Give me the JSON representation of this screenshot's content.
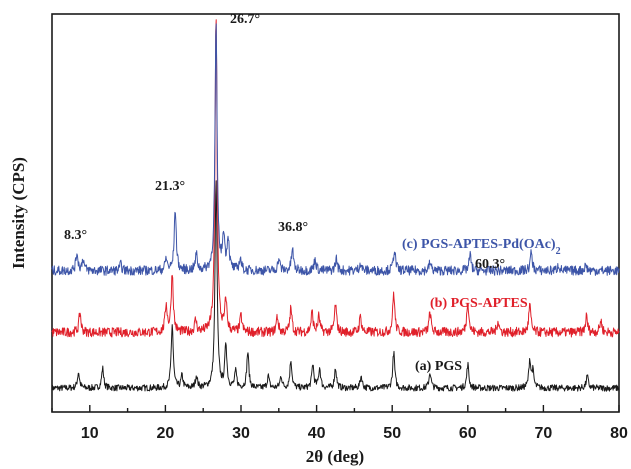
{
  "chart_data": {
    "type": "line",
    "xlabel": "2θ (deg)",
    "ylabel": "Intensity (CPS)",
    "xlim": [
      5,
      80
    ],
    "xticks": [
      10,
      20,
      30,
      40,
      50,
      60,
      70,
      80
    ],
    "y_tick_labels_shown": false,
    "grid": false,
    "legend": "inline labels beside each trace",
    "series": [
      {
        "name": "(a) PGS",
        "color": "#1a1a1a",
        "baseline": 0.06,
        "noise": 0.008,
        "peaks": [
          [
            8.5,
            0.04
          ],
          [
            11.7,
            0.05
          ],
          [
            20.9,
            0.16
          ],
          [
            22.2,
            0.03
          ],
          [
            24.1,
            0.03
          ],
          [
            26.7,
            0.52
          ],
          [
            28.0,
            0.11
          ],
          [
            29.3,
            0.04
          ],
          [
            30.9,
            0.09
          ],
          [
            33.6,
            0.03
          ],
          [
            35.3,
            0.03
          ],
          [
            36.6,
            0.07
          ],
          [
            39.5,
            0.06
          ],
          [
            40.4,
            0.05
          ],
          [
            42.5,
            0.05
          ],
          [
            45.9,
            0.03
          ],
          [
            50.2,
            0.09
          ],
          [
            55.0,
            0.04
          ],
          [
            60.0,
            0.06
          ],
          [
            68.2,
            0.07
          ],
          [
            68.6,
            0.04
          ],
          [
            75.8,
            0.03
          ]
        ]
      },
      {
        "name": "(b) PGS-APTES",
        "color": "#e0202a",
        "baseline": 0.2,
        "noise": 0.012,
        "peaks": [
          [
            8.7,
            0.05
          ],
          [
            20.1,
            0.07
          ],
          [
            20.9,
            0.15
          ],
          [
            24.0,
            0.03
          ],
          [
            26.7,
            0.8
          ],
          [
            28.0,
            0.08
          ],
          [
            30.0,
            0.04
          ],
          [
            34.8,
            0.04
          ],
          [
            36.6,
            0.06
          ],
          [
            39.4,
            0.05
          ],
          [
            40.3,
            0.04
          ],
          [
            42.5,
            0.07
          ],
          [
            45.8,
            0.04
          ],
          [
            50.2,
            0.1
          ],
          [
            55.0,
            0.05
          ],
          [
            60.0,
            0.08
          ],
          [
            64.0,
            0.03
          ],
          [
            68.2,
            0.07
          ],
          [
            75.7,
            0.04
          ],
          [
            77.6,
            0.03
          ]
        ]
      },
      {
        "name": "(c) PGS-APTES-Pd(OAc)2",
        "color": "#3d55a8",
        "baseline": 0.355,
        "noise": 0.012,
        "peaks": [
          [
            8.3,
            0.045
          ],
          [
            9.1,
            0.03
          ],
          [
            14.1,
            0.015
          ],
          [
            20.1,
            0.03
          ],
          [
            21.3,
            0.155
          ],
          [
            24.1,
            0.04
          ],
          [
            26.7,
            0.62
          ],
          [
            27.7,
            0.09
          ],
          [
            28.3,
            0.08
          ],
          [
            29.9,
            0.03
          ],
          [
            35.0,
            0.03
          ],
          [
            36.8,
            0.055
          ],
          [
            39.8,
            0.03
          ],
          [
            42.6,
            0.03
          ],
          [
            45.8,
            0.02
          ],
          [
            50.3,
            0.055
          ],
          [
            55.0,
            0.02
          ],
          [
            60.3,
            0.04
          ],
          [
            68.4,
            0.045
          ],
          [
            72.0,
            0.015
          ],
          [
            75.6,
            0.015
          ]
        ]
      }
    ],
    "series_labels": [
      {
        "text": "(a) PGS",
        "color": "#1a1a1a"
      },
      {
        "text": "(b) PGS-APTES",
        "color": "#e0202a"
      },
      {
        "text": "(c) PGS-APTES-Pd(OAc)",
        "sub": "2",
        "color": "#3d55a8"
      }
    ],
    "annotations": [
      "8.3°",
      "21.3°",
      "26.7°",
      "36.8°",
      "60.3°"
    ]
  }
}
